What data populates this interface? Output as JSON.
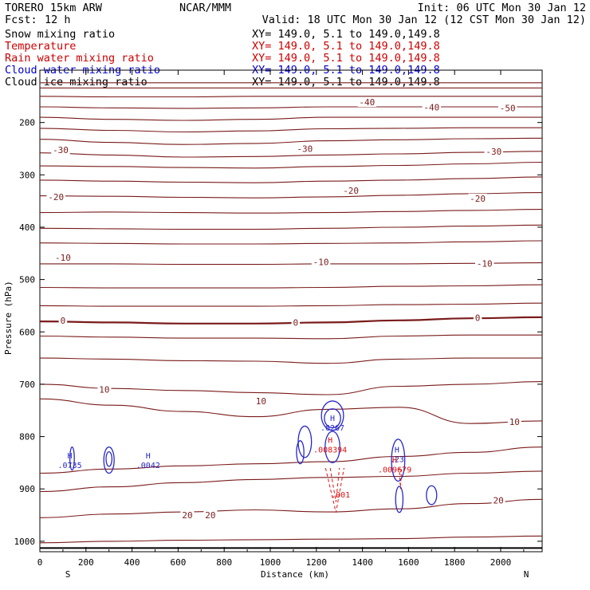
{
  "header": {
    "model": "TORERO  15km ARW",
    "org": "NCAR/MMM",
    "init": "Init: 06 UTC Mon 30 Jan 12",
    "fcst_label": "Fcst:",
    "fcst_value": "12 h",
    "valid": "Valid: 18 UTC Mon 30 Jan 12 (12 CST Mon 30 Jan 12)"
  },
  "fields": [
    {
      "name": "Snow mixing ratio",
      "xy": "XY= 149.0,  5.1 to 149.0,149.8",
      "color": "#000000"
    },
    {
      "name": "Temperature",
      "xy": "XY= 149.0,  5.1 to 149.0,149.8",
      "color": "#cc0000"
    },
    {
      "name": "Rain water mixing ratio",
      "xy": "XY= 149.0,  5.1 to 149.0,149.8",
      "color": "#cc0000"
    },
    {
      "name": "Cloud water mixing ratio",
      "xy": "XY= 149.0,  5.1 to 149.0,149.8",
      "color": "#0000cc"
    },
    {
      "name": "Cloud ice mixing ratio",
      "xy": "XY= 149.0,  5.1 to 149.0,149.8",
      "color": "#000000"
    }
  ],
  "chart_data": {
    "type": "cross-section contour",
    "xlabel": "Distance (km)",
    "ylabel": "Pressure (hPa)",
    "xlim": [
      0,
      2180
    ],
    "ylim": [
      1020,
      100
    ],
    "x_ticks": [
      0,
      200,
      400,
      600,
      800,
      1000,
      1200,
      1400,
      1600,
      1800,
      2000
    ],
    "y_ticks": [
      200,
      300,
      400,
      500,
      600,
      700,
      800,
      900,
      1000
    ],
    "south_label": "S",
    "north_label": "N",
    "ground_pressure": 1013,
    "isotherm_color": "#7a1b1b",
    "cloud_color": "#2828c8",
    "rain_color": "#dd1111",
    "temperature_isotherms": [
      {
        "p": [
          124,
          124,
          124,
          124,
          124,
          124,
          124,
          124
        ]
      },
      {
        "p": [
          134,
          134,
          134,
          134,
          134,
          134,
          134,
          134
        ]
      },
      {
        "p": [
          150,
          151,
          151,
          150,
          150,
          150,
          150,
          150
        ]
      },
      {
        "p": [
          170,
          172,
          173,
          172,
          170,
          170,
          170,
          170
        ]
      },
      {
        "p": [
          190,
          194,
          196,
          194,
          190,
          190,
          190,
          190
        ]
      },
      {
        "p": [
          211,
          215,
          218,
          216,
          212,
          211,
          210,
          210
        ]
      },
      {
        "p": [
          232,
          238,
          242,
          240,
          235,
          233,
          231,
          230
        ]
      },
      {
        "p": [
          258,
          262,
          266,
          265,
          262,
          260,
          257,
          255
        ]
      },
      {
        "p": [
          283,
          284,
          286,
          287,
          284,
          282,
          279,
          276
        ]
      },
      {
        "p": [
          310,
          312,
          314,
          315,
          312,
          310,
          307,
          304
        ]
      },
      {
        "p": [
          340,
          341,
          343,
          344,
          342,
          339,
          336,
          334
        ]
      },
      {
        "p": [
          372,
          371,
          372,
          373,
          372,
          370,
          368,
          366
        ]
      },
      {
        "p": [
          402,
          403,
          404,
          404,
          402,
          400,
          398,
          396
        ]
      },
      {
        "p": [
          430,
          431,
          432,
          432,
          431,
          430,
          428,
          426
        ]
      },
      {
        "p": [
          470,
          470,
          471,
          471,
          470,
          470,
          469,
          468
        ]
      },
      {
        "p": [
          515,
          516,
          516,
          516,
          515,
          513,
          512,
          510
        ]
      },
      {
        "p": [
          550,
          551,
          551,
          551,
          550,
          548,
          547,
          545
        ]
      },
      {
        "p": [
          580,
          582,
          584,
          584,
          582,
          578,
          574,
          572
        ]
      },
      {
        "p": [
          608,
          610,
          612,
          612,
          613,
          608,
          606,
          606
        ]
      },
      {
        "p": [
          650,
          652,
          655,
          656,
          660,
          652,
          650,
          650
        ]
      },
      {
        "p": [
          700,
          708,
          712,
          716,
          720,
          704,
          700,
          695
        ]
      },
      {
        "p": [
          728,
          740,
          752,
          762,
          748,
          744,
          775,
          770
        ]
      },
      {
        "p": [
          870,
          862,
          856,
          852,
          848,
          838,
          830,
          820
        ]
      },
      {
        "p": [
          905,
          896,
          888,
          882,
          878,
          876,
          870,
          866
        ]
      },
      {
        "p": [
          955,
          948,
          944,
          940,
          944,
          938,
          928,
          920
        ]
      },
      {
        "p": [
          1003,
          1000,
          998,
          997,
          996,
          995,
          992,
          990
        ]
      }
    ],
    "temperature_labels": [
      {
        "text": "-50",
        "x": 2030,
        "p": 172
      },
      {
        "text": "-40",
        "x": 1420,
        "p": 161
      },
      {
        "text": "-40",
        "x": 1700,
        "p": 171
      },
      {
        "text": "-30",
        "x": 90,
        "p": 252
      },
      {
        "text": "-30",
        "x": 1150,
        "p": 250
      },
      {
        "text": "-30",
        "x": 1970,
        "p": 255
      },
      {
        "text": "-20",
        "x": 70,
        "p": 342
      },
      {
        "text": "-20",
        "x": 1350,
        "p": 330
      },
      {
        "text": "-20",
        "x": 1900,
        "p": 345
      },
      {
        "text": "-10",
        "x": 100,
        "p": 458
      },
      {
        "text": "-10",
        "x": 1220,
        "p": 466
      },
      {
        "text": "-10",
        "x": 1930,
        "p": 469
      },
      {
        "text": "0",
        "x": 100,
        "p": 578
      },
      {
        "text": "0",
        "x": 1110,
        "p": 582
      },
      {
        "text": "0",
        "x": 1900,
        "p": 573
      },
      {
        "text": "10",
        "x": 280,
        "p": 710
      },
      {
        "text": "10",
        "x": 960,
        "p": 732
      },
      {
        "text": "10",
        "x": 2060,
        "p": 772
      },
      {
        "text": "20",
        "x": 640,
        "p": 950
      },
      {
        "text": "20",
        "x": 740,
        "p": 950
      },
      {
        "text": "20",
        "x": 1990,
        "p": 922
      }
    ],
    "cloud_water_maxima": [
      {
        "label": "H",
        "value": ".0735",
        "x": 130,
        "p": 842
      },
      {
        "label": "H",
        "value": ".0042",
        "x": 470,
        "p": 842
      },
      {
        "label": "H",
        "value": ".6267",
        "x": 1270,
        "p": 770
      },
      {
        "label": "H",
        "value": ".23",
        "x": 1550,
        "p": 830
      }
    ],
    "rain_water_maxima": [
      {
        "label": "H",
        "value": ".008394",
        "x": 1260,
        "p": 812
      },
      {
        "label": "H",
        "value": ".009679",
        "x": 1540,
        "p": 850
      },
      {
        "label": "",
        "value": ".001",
        "x": 1305,
        "p": 910
      }
    ]
  }
}
